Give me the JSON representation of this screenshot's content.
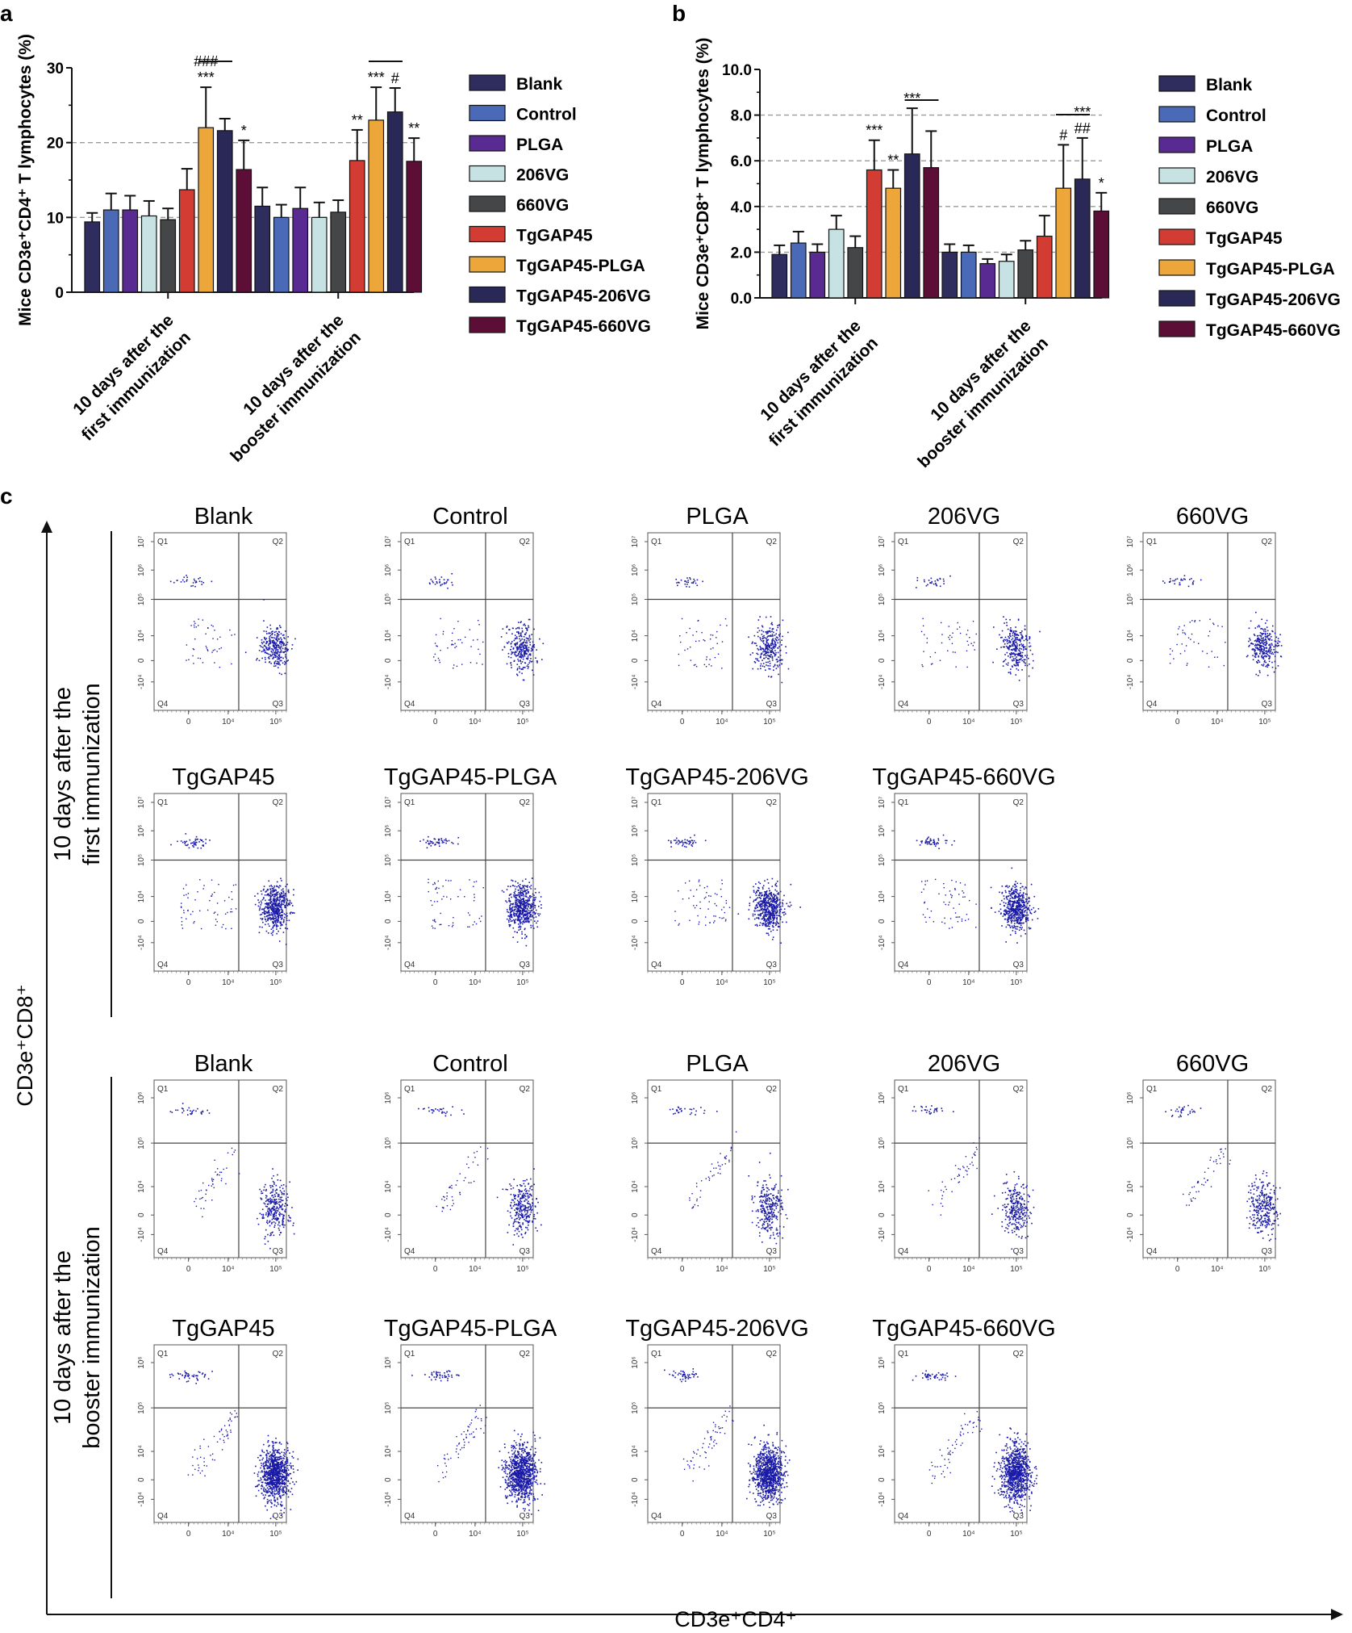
{
  "chart_data": [
    {
      "panel": "a",
      "type": "bar",
      "ylabel": "Mice CD3e⁺CD4⁺ T lymphocytes (%)",
      "ylim": [
        0,
        30
      ],
      "yticks": [
        0,
        10,
        20,
        30
      ],
      "ytick_labels": [
        "0",
        "10",
        "20",
        "30"
      ],
      "gridlines": [
        10,
        20
      ],
      "categories": [
        "10 days after the first immunization",
        "10 days after the booster immunization"
      ],
      "category_lines": [
        [
          "10 days after the",
          "first immunization"
        ],
        [
          "10 days after the",
          "booster immunization"
        ]
      ],
      "series": [
        {
          "name": "Blank",
          "color": "#2e2d5e",
          "values": [
            9.4,
            11.5
          ],
          "errors": [
            1.2,
            2.5
          ]
        },
        {
          "name": "Control",
          "color": "#4a69b7",
          "values": [
            11.0,
            10.0
          ],
          "errors": [
            2.2,
            1.7
          ]
        },
        {
          "name": "PLGA",
          "color": "#5a2a93",
          "values": [
            11.0,
            11.2
          ],
          "errors": [
            1.9,
            2.8
          ]
        },
        {
          "name": "206VG",
          "color": "#c7e2e3",
          "values": [
            10.2,
            10.0
          ],
          "errors": [
            2.0,
            2.0
          ]
        },
        {
          "name": "660VG",
          "color": "#454647",
          "values": [
            9.7,
            10.7
          ],
          "errors": [
            1.5,
            1.6
          ]
        },
        {
          "name": "TgGAP45",
          "color": "#d33c32",
          "values": [
            13.7,
            17.6
          ],
          "errors": [
            2.8,
            4.1
          ]
        },
        {
          "name": "TgGAP45-PLGA",
          "color": "#eda63a",
          "values": [
            22.0,
            23.0
          ],
          "errors": [
            5.4,
            4.4
          ]
        },
        {
          "name": "TgGAP45-206VG",
          "color": "#2a2857",
          "values": [
            21.6,
            24.1
          ],
          "errors": [
            1.6,
            3.2
          ]
        },
        {
          "name": "TgGAP45-660VG",
          "color": "#5c0e36",
          "values": [
            16.4,
            17.5
          ],
          "errors": [
            3.9,
            3.1
          ]
        }
      ],
      "annotations": [
        {
          "group": 0,
          "series": 6,
          "text": "***"
        },
        {
          "group": 0,
          "series": 6,
          "text": "###"
        },
        {
          "group": 0,
          "series": 8,
          "text": "*"
        },
        {
          "group": 1,
          "series": 5,
          "text": "**"
        },
        {
          "group": 1,
          "series": 6,
          "text": "***"
        },
        {
          "group": 1,
          "series": 7,
          "text": "#"
        },
        {
          "group": 1,
          "series": 8,
          "text": "**"
        }
      ]
    },
    {
      "panel": "b",
      "type": "bar",
      "ylabel": "Mice CD3e⁺CD8⁺ T lymphocytes (%)",
      "ylim": [
        0,
        10
      ],
      "yticks": [
        0,
        2,
        4,
        6,
        8,
        10
      ],
      "ytick_labels": [
        "0.0",
        "2.0",
        "4.0",
        "6.0",
        "8.0",
        "10.0"
      ],
      "gridlines": [
        2,
        4,
        6,
        8
      ],
      "categories": [
        "10 days after the first immunization",
        "10 days after the booster immunization"
      ],
      "category_lines": [
        [
          "10 days after the",
          "first immunization"
        ],
        [
          "10 days after the",
          "booster immunization"
        ]
      ],
      "series": [
        {
          "name": "Blank",
          "color": "#2e2d5e",
          "values": [
            1.9,
            2.0
          ],
          "errors": [
            0.4,
            0.35
          ]
        },
        {
          "name": "Control",
          "color": "#4a69b7",
          "values": [
            2.4,
            2.0
          ],
          "errors": [
            0.5,
            0.3
          ]
        },
        {
          "name": "PLGA",
          "color": "#5a2a93",
          "values": [
            2.0,
            1.5
          ],
          "errors": [
            0.35,
            0.2
          ]
        },
        {
          "name": "206VG",
          "color": "#c7e2e3",
          "values": [
            3.0,
            1.6
          ],
          "errors": [
            0.6,
            0.3
          ]
        },
        {
          "name": "660VG",
          "color": "#454647",
          "values": [
            2.2,
            2.1
          ],
          "errors": [
            0.5,
            0.4
          ]
        },
        {
          "name": "TgGAP45",
          "color": "#d33c32",
          "values": [
            5.6,
            2.7
          ],
          "errors": [
            1.3,
            0.9
          ]
        },
        {
          "name": "TgGAP45-PLGA",
          "color": "#eda63a",
          "values": [
            4.8,
            4.8
          ],
          "errors": [
            0.8,
            1.9
          ]
        },
        {
          "name": "TgGAP45-206VG",
          "color": "#2a2857",
          "values": [
            6.3,
            5.2
          ],
          "errors": [
            2.0,
            1.8
          ]
        },
        {
          "name": "TgGAP45-660VG",
          "color": "#5c0e36",
          "values": [
            5.7,
            3.8
          ],
          "errors": [
            1.6,
            0.8
          ]
        }
      ],
      "annotations": [
        {
          "group": 0,
          "series": 5,
          "text": "***"
        },
        {
          "group": 0,
          "series": 6,
          "text": "**"
        },
        {
          "group": 0,
          "series": 7,
          "text": "***"
        },
        {
          "group": 1,
          "series": 6,
          "text": "#"
        },
        {
          "group": 1,
          "series": 7,
          "text": "##"
        },
        {
          "group": 1,
          "series": 7,
          "text": "***"
        },
        {
          "group": 1,
          "series": 8,
          "text": "*"
        }
      ]
    },
    {
      "panel": "c",
      "type": "scatter",
      "xlabel": "CD3e⁺CD4⁺",
      "ylabel": "CD3e⁺CD8⁺",
      "timepoints": [
        [
          "10 days after the",
          "first immunization"
        ],
        [
          "10 days after the",
          "booster immunization"
        ]
      ],
      "groups": [
        "Blank",
        "Control",
        "PLGA",
        "206VG",
        "660VG",
        "TgGAP45",
        "TgGAP45-PLGA",
        "TgGAP45-206VG",
        "TgGAP45-660VG"
      ],
      "quadrants": [
        "Q1",
        "Q2",
        "Q3",
        "Q4"
      ],
      "x_tick_labels": [
        "0",
        "10⁴",
        "10⁵"
      ],
      "y_tick_labels_first": [
        "-10⁴",
        "0",
        "10⁴",
        "10⁵",
        "10⁶",
        "10⁷"
      ],
      "y_tick_labels_booster": [
        "-10⁴",
        "0",
        "10⁴",
        "10⁵",
        "10⁶"
      ],
      "dot_color": "#1a1aa8"
    }
  ]
}
